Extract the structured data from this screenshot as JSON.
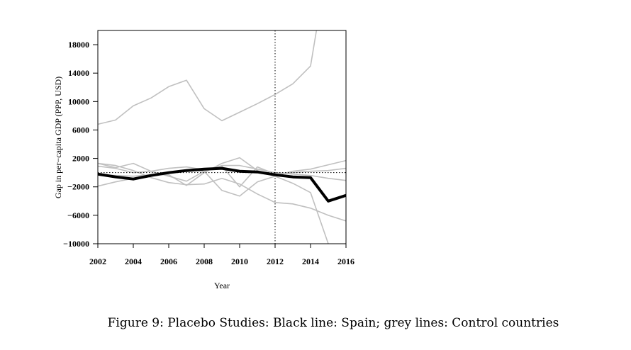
{
  "chart_data": {
    "type": "line",
    "title": "",
    "xlabel": "Year",
    "ylabel": "Gap in per−capita GDP (PPP, USD)",
    "xlim": [
      2002,
      2016
    ],
    "ylim": [
      -10000,
      20000
    ],
    "x_ticks": [
      2002,
      2004,
      2006,
      2008,
      2010,
      2012,
      2014,
      2016
    ],
    "x_tick_labels": [
      "2002",
      "2004",
      "2006",
      "2008",
      "2010",
      "2012",
      "2014",
      "2016"
    ],
    "y_ticks": [
      -10000,
      -6000,
      -2000,
      2000,
      6000,
      10000,
      14000,
      18000
    ],
    "y_tick_labels": [
      "−10000",
      "−6000",
      "−2000",
      "2000",
      "6000",
      "10000",
      "14000",
      "18000"
    ],
    "reference_lines": {
      "vertical_x": 2012,
      "horizontal_y": 0
    },
    "grid": false,
    "x": [
      2002,
      2003,
      2004,
      2005,
      2006,
      2007,
      2008,
      2009,
      2010,
      2011,
      2012,
      2013,
      2014,
      2015,
      2016
    ],
    "series": [
      {
        "role": "treated",
        "color": "#000000",
        "width": 4,
        "values": [
          -200,
          -600,
          -900,
          -400,
          0,
          300,
          500,
          600,
          200,
          100,
          -300,
          -600,
          -700,
          -4000,
          -3200
        ]
      },
      {
        "role": "control",
        "color": "#c0c0c0",
        "width": 1.6,
        "values": [
          6800,
          7400,
          9400,
          10500,
          12100,
          13000,
          9000,
          7300,
          8500,
          9700,
          11000,
          12500,
          15000,
          30000,
          null
        ]
      },
      {
        "role": "control",
        "color": "#c0c0c0",
        "width": 1.6,
        "values": [
          1300,
          1000,
          300,
          -700,
          -1400,
          -1700,
          -1600,
          -800,
          -1600,
          -3000,
          -4200,
          -4400,
          -5000,
          -6000,
          -6800
        ]
      },
      {
        "role": "control",
        "color": "#c0c0c0",
        "width": 1.6,
        "values": [
          1300,
          700,
          1300,
          200,
          -500,
          -1200,
          200,
          -2500,
          -3300,
          -1300,
          -500,
          -1500,
          -2800,
          -10000,
          null
        ]
      },
      {
        "role": "control",
        "color": "#c0c0c0",
        "width": 1.6,
        "values": [
          -1900,
          -1300,
          -800,
          -300,
          -300,
          -1800,
          0,
          1300,
          2100,
          300,
          -400,
          200,
          500,
          1100,
          1700
        ]
      },
      {
        "role": "control",
        "color": "#c0c0c0",
        "width": 1.6,
        "values": [
          900,
          600,
          0,
          200,
          600,
          800,
          400,
          900,
          -2000,
          800,
          -200,
          0,
          200,
          300,
          600
        ]
      },
      {
        "role": "control",
        "color": "#c0c0c0",
        "width": 1.6,
        "values": [
          -300,
          -400,
          -500,
          -300,
          0,
          400,
          200,
          1000,
          1000,
          500,
          0,
          -200,
          -400,
          -800,
          -1100
        ]
      }
    ]
  },
  "caption": "Figure 9: Placebo Studies: Black line: Spain; grey lines: Control countries"
}
